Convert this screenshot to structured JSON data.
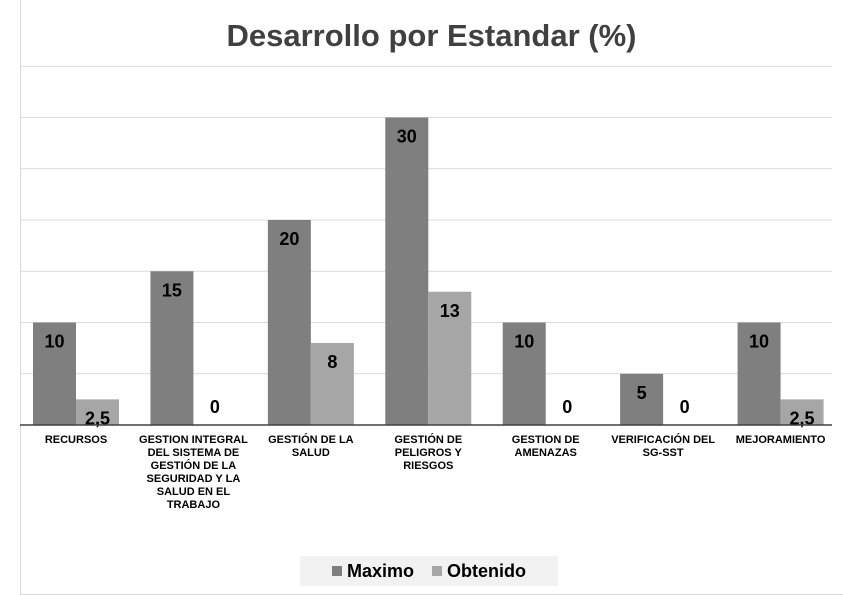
{
  "chart_data": {
    "type": "bar",
    "title": "Desarrollo por Estandar (%)",
    "categories": [
      "RECURSOS",
      "GESTION INTEGRAL DEL SISTEMA DE GESTIÓN DE LA SEGURIDAD Y LA SALUD EN EL TRABAJO",
      "GESTIÓN DE LA SALUD",
      "GESTIÓN DE PELIGROS Y RIESGOS",
      "GESTION DE AMENAZAS",
      "VERIFICACIÓN DEL SG-SST",
      "MEJORAMIENTO"
    ],
    "series": [
      {
        "name": "Maximo",
        "values": [
          10,
          15,
          20,
          30,
          10,
          5,
          10
        ],
        "labels": [
          "10",
          "15",
          "20",
          "30",
          "10",
          "5",
          "10"
        ],
        "color": "#7f7f7f"
      },
      {
        "name": "Obtenido",
        "values": [
          2.5,
          0,
          8,
          13,
          0,
          0,
          2.5
        ],
        "labels": [
          "2,5",
          "0",
          "8",
          "13",
          "0",
          "0",
          "2,5"
        ],
        "color": "#a6a6a6"
      }
    ],
    "ylim": [
      0,
      35
    ],
    "grid": true,
    "legend_position": "bottom"
  }
}
